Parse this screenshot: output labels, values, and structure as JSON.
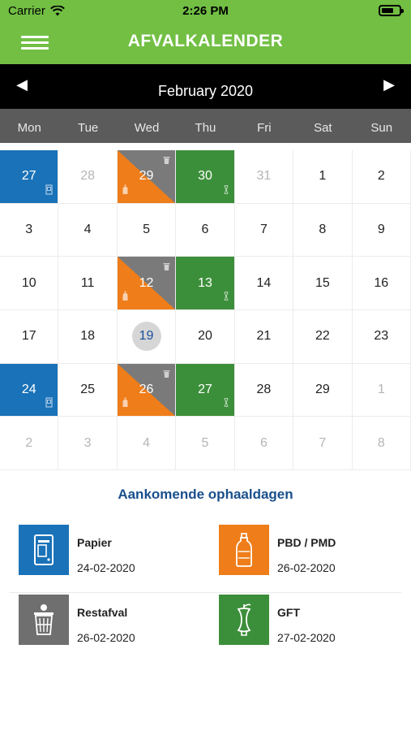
{
  "status": {
    "carrier": "Carrier",
    "time": "2:26 PM"
  },
  "navbar": {
    "title": "AFVALKALENDER"
  },
  "calendar": {
    "month_label": "February 2020",
    "weekdays": [
      "Mon",
      "Tue",
      "Wed",
      "Thu",
      "Fri",
      "Sat",
      "Sun"
    ],
    "weeks": [
      [
        {
          "day": "27",
          "type": "paper"
        },
        {
          "day": "28",
          "muted": true
        },
        {
          "day": "29",
          "type": "mixed"
        },
        {
          "day": "30",
          "type": "gft"
        },
        {
          "day": "31",
          "muted": true
        },
        {
          "day": "1"
        },
        {
          "day": "2"
        }
      ],
      [
        {
          "day": "3"
        },
        {
          "day": "4"
        },
        {
          "day": "5"
        },
        {
          "day": "6"
        },
        {
          "day": "7"
        },
        {
          "day": "8"
        },
        {
          "day": "9"
        }
      ],
      [
        {
          "day": "10"
        },
        {
          "day": "11"
        },
        {
          "day": "12",
          "type": "mixed"
        },
        {
          "day": "13",
          "type": "gft"
        },
        {
          "day": "14"
        },
        {
          "day": "15"
        },
        {
          "day": "16"
        }
      ],
      [
        {
          "day": "17"
        },
        {
          "day": "18"
        },
        {
          "day": "19",
          "today": true
        },
        {
          "day": "20"
        },
        {
          "day": "21"
        },
        {
          "day": "22"
        },
        {
          "day": "23"
        }
      ],
      [
        {
          "day": "24",
          "type": "paper"
        },
        {
          "day": "25"
        },
        {
          "day": "26",
          "type": "mixed"
        },
        {
          "day": "27",
          "type": "gft"
        },
        {
          "day": "28"
        },
        {
          "day": "29"
        },
        {
          "day": "1",
          "muted": true
        }
      ],
      [
        {
          "day": "2",
          "muted": true
        },
        {
          "day": "3",
          "muted": true
        },
        {
          "day": "4",
          "muted": true
        },
        {
          "day": "5",
          "muted": true
        },
        {
          "day": "6",
          "muted": true
        },
        {
          "day": "7",
          "muted": true
        },
        {
          "day": "8",
          "muted": true
        }
      ]
    ]
  },
  "upcoming": {
    "title": "Aankomende ophaaldagen",
    "items": [
      {
        "name": "Papier",
        "date": "24-02-2020",
        "icon": "paper-container-icon",
        "color": "#1a72b8"
      },
      {
        "name": "PBD / PMD",
        "date": "26-02-2020",
        "icon": "bottle-icon",
        "color": "#ef7d1a"
      },
      {
        "name": "Restafval",
        "date": "26-02-2020",
        "icon": "trash-bin-icon",
        "color": "#6f6f6f"
      },
      {
        "name": "GFT",
        "date": "27-02-2020",
        "icon": "apple-core-icon",
        "color": "#3c8f3a"
      }
    ]
  },
  "colors": {
    "brand_green": "#72bf44",
    "paper_blue": "#1a72b8",
    "pmd_orange": "#ef7d1a",
    "rest_gray": "#6f6f6f",
    "gft_green": "#3c8f3a"
  }
}
